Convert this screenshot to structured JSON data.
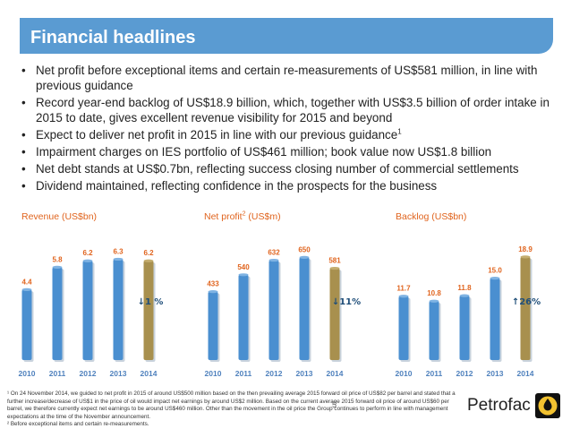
{
  "header": {
    "title": "Financial headlines"
  },
  "bullets": [
    "Net profit before exceptional items and certain re-measurements of US$581 million, in line with previous guidance",
    "Record year-end backlog of US$18.9 billion, which, together with US$3.5 billion of order intake in 2015 to date, gives excellent revenue visibility for 2015 and beyond",
    "Expect to deliver net profit in 2015 in line with our previous guidance",
    "Impairment charges on IES portfolio of US$461 million; book value now US$1.8 billion",
    "Net debt stands at US$0.7bn, reflecting success closing number of commercial settlements",
    "Dividend maintained, reflecting confidence in the prospects for the business"
  ],
  "bullet_footnote_ref": "1",
  "chart_data": [
    {
      "type": "bar",
      "title": "Revenue (US$bn)",
      "categories": [
        "2010",
        "2011",
        "2012",
        "2013",
        "2014"
      ],
      "values": [
        4.4,
        5.8,
        6.2,
        6.3,
        6.2
      ],
      "value_labels": [
        "4.4",
        "5.8",
        "6.2",
        "6.3",
        "6.2"
      ],
      "ylim": [
        0,
        7.5
      ],
      "change_label": "1 %",
      "change_direction": "down",
      "highlight_index": 4
    },
    {
      "type": "bar",
      "title": "Net profit",
      "title_sup": "2",
      "title_suffix": " (US$m)",
      "categories": [
        "2010",
        "2011",
        "2012",
        "2013",
        "2014"
      ],
      "values": [
        433,
        540,
        632,
        650,
        581
      ],
      "value_labels": [
        "433",
        "540",
        "632",
        "650",
        "581"
      ],
      "ylim": [
        0,
        760
      ],
      "change_label": "11%",
      "change_direction": "down",
      "highlight_index": 4
    },
    {
      "type": "bar",
      "title": "Backlog (US$bn)",
      "categories": [
        "2010",
        "2011",
        "2012",
        "2013",
        "2014"
      ],
      "values": [
        11.7,
        10.8,
        11.8,
        15.0,
        18.9
      ],
      "value_labels": [
        "11.7",
        "10.8",
        "11.8",
        "15.0",
        "18.9"
      ],
      "ylim": [
        0,
        22
      ],
      "change_label": "26%",
      "change_direction": "up",
      "highlight_index": 4
    }
  ],
  "colors": {
    "header_bg": "#5a9bd2",
    "bar_blue": "#4a8fd0",
    "bar_highlight": "#a8904e",
    "axis_label": "#4f81bd",
    "chart_title": "#e0641e",
    "value_label": "#e0641e",
    "change_label": "#1f4e79"
  },
  "footnotes": [
    "¹ On 24 November 2014, we guided to net profit in 2015 of around US$500 million based on the then prevailing average 2015 forward oil price of US$82 per barrel and stated that a further increase/decrease of US$1 in the price of oil would impact net earnings by around US$2 million. Based on the current average 2015 forward oil price of around US$60 per barrel, we therefore currently expect net earnings to be around US$460 million. Other than the movement in the oil price the Group continues to perform in line with management expectations at the time of the November announcement.",
    "² Before exceptional items and certain re-measurements."
  ],
  "page_number": "5",
  "logo": {
    "wordmark": "Petrofac",
    "mark_icon": "petrofac-logo-mark-icon"
  }
}
